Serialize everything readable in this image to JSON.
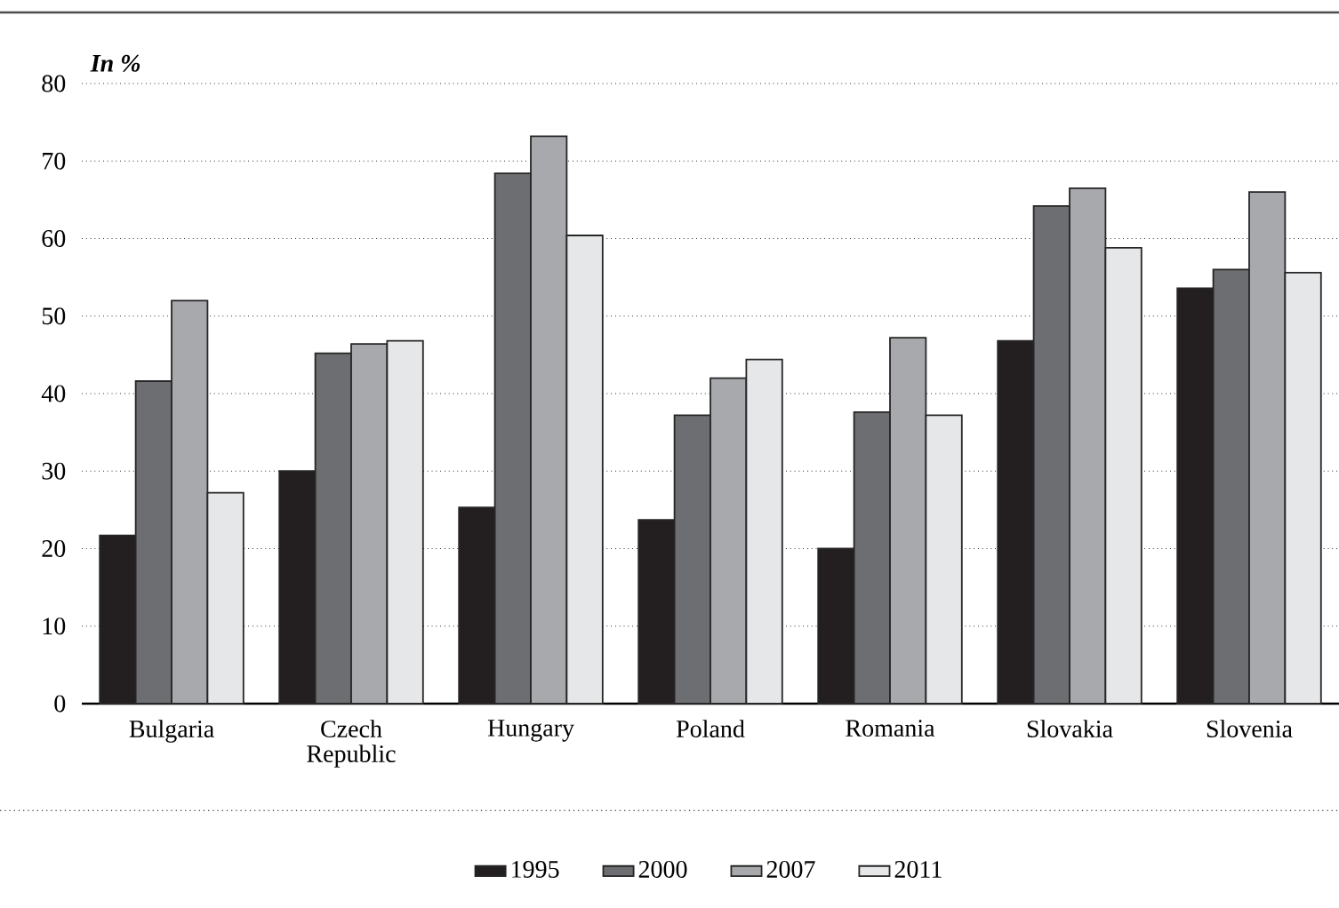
{
  "chart_data": {
    "type": "bar",
    "ylabel": "In %",
    "categories": [
      "Bulgaria",
      "Czech Republic",
      "Hungary",
      "Poland",
      "Romania",
      "Slovakia",
      "Slovenia"
    ],
    "series": [
      {
        "name": "1995",
        "color": "#231f20",
        "values": [
          21.7,
          30,
          25.3,
          23.7,
          20,
          46.8,
          53.6
        ]
      },
      {
        "name": "2000",
        "color": "#6d6e71",
        "values": [
          41.6,
          45.2,
          68.4,
          37.2,
          37.6,
          64.2,
          56
        ]
      },
      {
        "name": "2007",
        "color": "#a7a9ac",
        "values": [
          52,
          46.4,
          73.2,
          42,
          47.2,
          66.5,
          66
        ]
      },
      {
        "name": "2011",
        "color": "#e6e7e8",
        "values": [
          27.2,
          46.8,
          60.4,
          44.4,
          37.2,
          58.8,
          55.6
        ]
      }
    ],
    "ylim": [
      0,
      80
    ],
    "yticks": [
      0,
      10,
      20,
      30,
      40,
      50,
      60,
      70,
      80
    ],
    "grid": "y",
    "legend": "bottom"
  }
}
